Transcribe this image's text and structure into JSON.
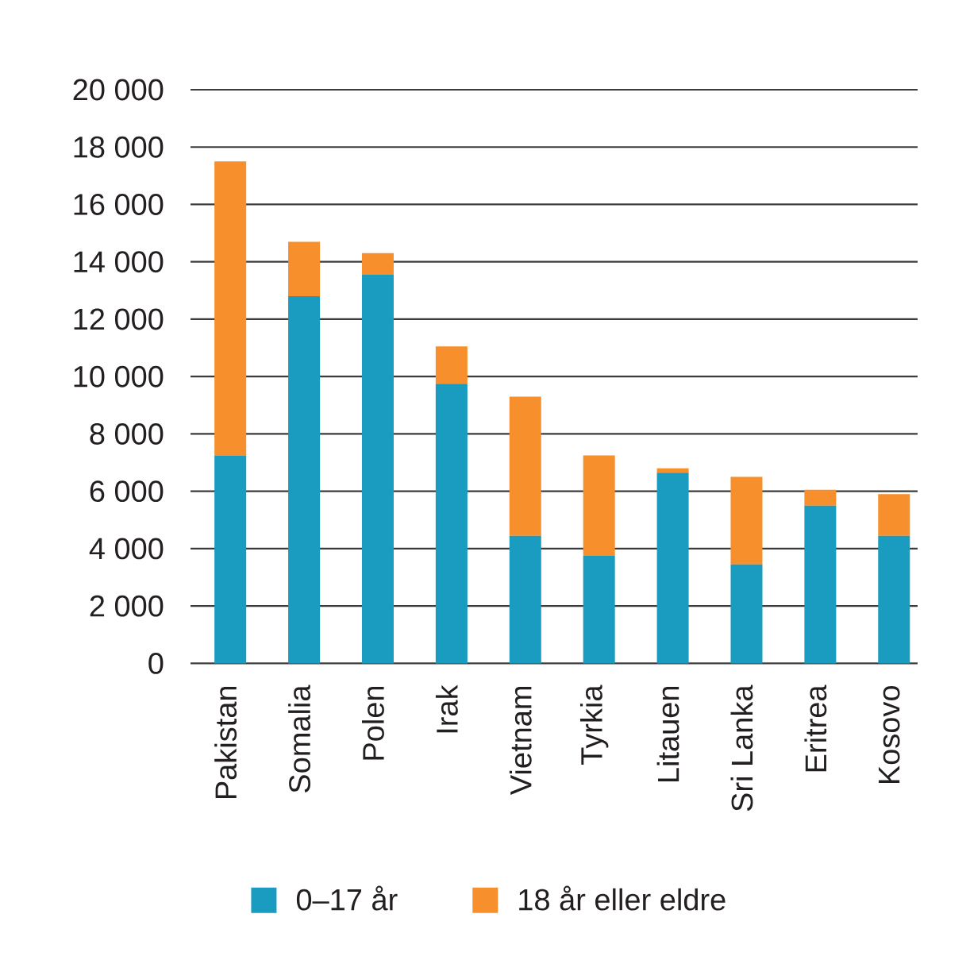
{
  "chart_data": {
    "type": "bar",
    "stacked": true,
    "categories": [
      "Pakistan",
      "Somalia",
      "Polen",
      "Irak",
      "Vietnam",
      "Tyrkia",
      "Litauen",
      "Sri Lanka",
      "Eritrea",
      "Kosovo"
    ],
    "series": [
      {
        "name": "0–17 år",
        "color": "#1a9bc0",
        "values": [
          7250,
          12800,
          13550,
          9750,
          4450,
          3750,
          6650,
          3450,
          5500,
          4450
        ]
      },
      {
        "name": "18 år eller eldre",
        "color": "#f68f2c",
        "values": [
          10250,
          1900,
          750,
          1300,
          4850,
          3500,
          150,
          3050,
          550,
          1450
        ]
      }
    ],
    "ylim": [
      0,
      20000
    ],
    "yticks": [
      0,
      {
        "value": 2000,
        "label": "2 000"
      },
      {
        "value": 4000,
        "label": "4 000"
      },
      {
        "value": 6000,
        "label": "6 000"
      },
      {
        "value": 8000,
        "label": "8 000"
      },
      {
        "value": 10000,
        "label": "10 000"
      },
      {
        "value": 12000,
        "label": "12 000"
      },
      {
        "value": 14000,
        "label": "14 000"
      },
      {
        "value": 16000,
        "label": "16 000"
      },
      {
        "value": 18000,
        "label": "18 000"
      },
      {
        "value": 20000,
        "label": "20 000"
      }
    ],
    "grid": "y",
    "legend": "bottom"
  }
}
